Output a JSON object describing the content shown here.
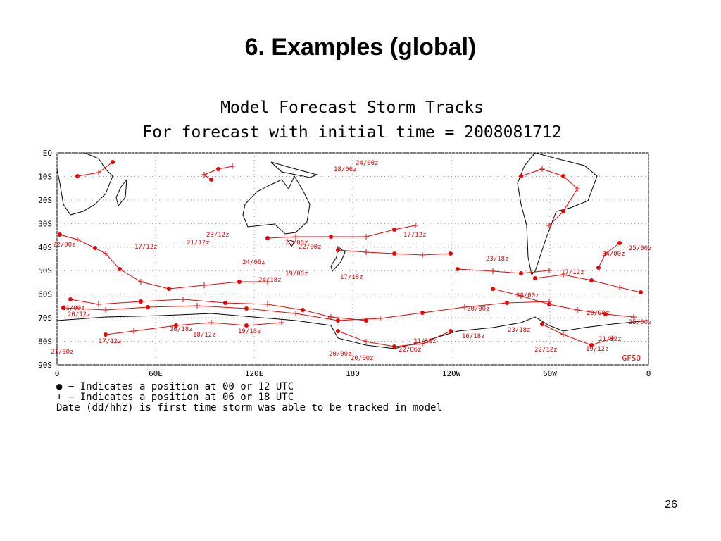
{
  "header": {
    "title": "6. Examples (global)"
  },
  "figure": {
    "title": "Model Forecast Storm Tracks",
    "subtitle": "For forecast with initial time = 2008081712",
    "lat_labels": [
      "EQ",
      "10S",
      "20S",
      "30S",
      "40S",
      "50S",
      "60S",
      "70S",
      "80S",
      "90S"
    ],
    "lon_labels": [
      "0",
      "60E",
      "120E",
      "180",
      "120W",
      "60W",
      "0"
    ],
    "model": "GFSO",
    "legend": [
      "● − Indicates a position at 00 or 12 UTC",
      "+ − Indicates a position at 06 or 18 UTC",
      "Date (dd/hhz) is first time storm was able to be tracked in model"
    ],
    "track_labels": [
      "24/00z",
      "18/06z",
      "17/12z",
      "23/12z",
      "21/12z",
      "17/12z",
      "22/00z",
      "24/06z",
      "19/00z",
      "22/00z",
      "21/06z",
      "23/18z",
      "24/00z",
      "25/00z",
      "17/12z",
      "17/18z",
      "24/18z",
      "20/00z",
      "24/00z",
      "20/12z",
      "21/00z",
      "20/18z",
      "18/12z",
      "19/18z",
      "17/12z",
      "21/00z",
      "20/00z",
      "20/00z",
      "22/06z",
      "21/18z",
      "16/18z",
      "22/12z",
      "19/12z",
      "21/12z",
      "25/00z",
      "20/00z",
      "23/18z"
    ]
  },
  "footer": {
    "page": "26"
  }
}
